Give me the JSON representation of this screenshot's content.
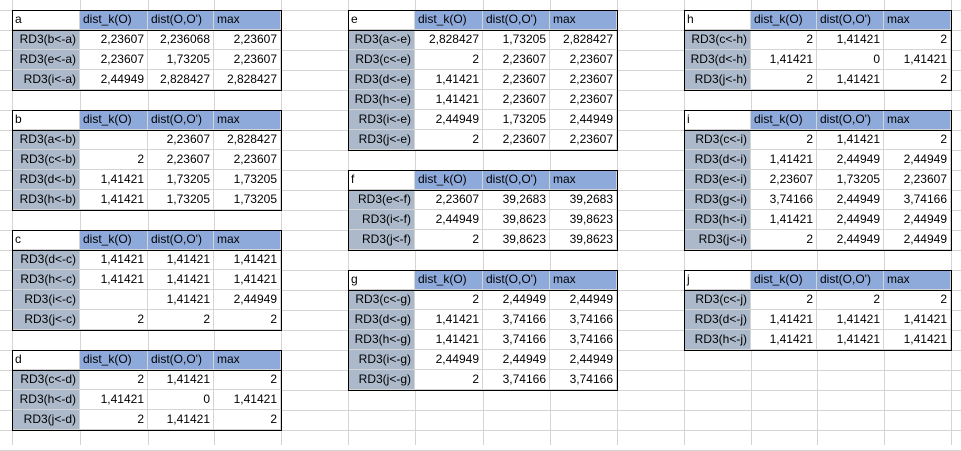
{
  "tables": [
    {
      "name": "a",
      "headers": [
        "dist_k(O)",
        "dist(O,O')",
        "max"
      ],
      "rows": [
        [
          "RD3(b<-a)",
          "2,23607",
          "2,236068",
          "2,23607"
        ],
        [
          "RD3(e<-a)",
          "2,23607",
          "1,73205",
          "2,23607"
        ],
        [
          "RD3(i<-a)",
          "2,44949",
          "2,828427",
          "2,828427"
        ]
      ]
    },
    {
      "name": "b",
      "headers": [
        "dist_k(O)",
        "dist(O,O')",
        "max"
      ],
      "rows": [
        [
          "RD3(a<-b)",
          "",
          "2,23607",
          "2,828427"
        ],
        [
          "RD3(c<-b)",
          "2",
          "2,23607",
          "2,23607"
        ],
        [
          "RD3(d<-b)",
          "1,41421",
          "1,73205",
          "1,73205"
        ],
        [
          "RD3(h<-b)",
          "1,41421",
          "1,73205",
          "1,73205"
        ]
      ]
    },
    {
      "name": "c",
      "headers": [
        "dist_k(O)",
        "dist(O,O')",
        "max"
      ],
      "rows": [
        [
          "RD3(d<-c)",
          "1,41421",
          "1,41421",
          "1,41421"
        ],
        [
          "RD3(h<-c)",
          "1,41421",
          "1,41421",
          "1,41421"
        ],
        [
          "RD3(i<-c)",
          "",
          "1,41421",
          "2,44949"
        ],
        [
          "RD3(j<-c)",
          "2",
          "2",
          "2"
        ]
      ]
    },
    {
      "name": "d",
      "headers": [
        "dist_k(O)",
        "dist(O,O')",
        "max"
      ],
      "rows": [
        [
          "RD3(c<-d)",
          "2",
          "1,41421",
          "2"
        ],
        [
          "RD3(h<-d)",
          "1,41421",
          "0",
          "1,41421"
        ],
        [
          "RD3(j<-d)",
          "2",
          "1,41421",
          "2"
        ]
      ]
    },
    {
      "name": "e",
      "headers": [
        "dist_k(O)",
        "dist(O,O')",
        "max"
      ],
      "rows": [
        [
          "RD3(a<-e)",
          "2,828427",
          "1,73205",
          "2,828427"
        ],
        [
          "RD3(c<-e)",
          "2",
          "2,23607",
          "2,23607"
        ],
        [
          "RD3(d<-e)",
          "1,41421",
          "2,23607",
          "2,23607"
        ],
        [
          "RD3(h<-e)",
          "1,41421",
          "2,23607",
          "2,23607"
        ],
        [
          "RD3(i<-e)",
          "2,44949",
          "1,73205",
          "2,44949"
        ],
        [
          "RD3(j<-e)",
          "2",
          "2,23607",
          "2,23607"
        ]
      ]
    },
    {
      "name": "f",
      "headers": [
        "dist_k(O)",
        "dist(O,O')",
        "max"
      ],
      "rows": [
        [
          "RD3(e<-f)",
          "2,23607",
          "39,2683",
          "39,2683"
        ],
        [
          "RD3(i<-f)",
          "2,44949",
          "39,8623",
          "39,8623"
        ],
        [
          "RD3(j<-f)",
          "2",
          "39,8623",
          "39,8623"
        ]
      ]
    },
    {
      "name": "g",
      "headers": [
        "dist_k(O)",
        "dist(O,O')",
        "max"
      ],
      "rows": [
        [
          "RD3(c<-g)",
          "2",
          "2,44949",
          "2,44949"
        ],
        [
          "RD3(d<-g)",
          "1,41421",
          "3,74166",
          "3,74166"
        ],
        [
          "RD3(h<-g)",
          "1,41421",
          "3,74166",
          "3,74166"
        ],
        [
          "RD3(i<-g)",
          "2,44949",
          "2,44949",
          "2,44949"
        ],
        [
          "RD3(j<-g)",
          "2",
          "3,74166",
          "3,74166"
        ]
      ]
    },
    {
      "name": "h",
      "headers": [
        "dist_k(O)",
        "dist(O,O')",
        "max"
      ],
      "rows": [
        [
          "RD3(c<-h)",
          "2",
          "1,41421",
          "2"
        ],
        [
          "RD3(d<-h)",
          "1,41421",
          "0",
          "1,41421"
        ],
        [
          "RD3(j<-h)",
          "2",
          "1,41421",
          "2"
        ]
      ]
    },
    {
      "name": "i",
      "headers": [
        "dist_k(O)",
        "dist(O,O')",
        "max"
      ],
      "rows": [
        [
          "RD3(c<-i)",
          "2",
          "1,41421",
          "2"
        ],
        [
          "RD3(d<-i)",
          "1,41421",
          "2,44949",
          "2,44949"
        ],
        [
          "RD3(e<-i)",
          "2,23607",
          "1,73205",
          "2,23607"
        ],
        [
          "RD3(g<-i)",
          "3,74166",
          "2,44949",
          "3,74166"
        ],
        [
          "RD3(h<-i)",
          "1,41421",
          "2,44949",
          "2,44949"
        ],
        [
          "RD3(j<-i)",
          "2",
          "2,44949",
          "2,44949"
        ]
      ]
    },
    {
      "name": "j",
      "headers": [
        "dist_k(O)",
        "dist(O,O')",
        "max"
      ],
      "rows": [
        [
          "RD3(c<-j)",
          "2",
          "2",
          "2"
        ],
        [
          "RD3(d<-j)",
          "1,41421",
          "1,41421",
          "1,41421"
        ],
        [
          "RD3(h<-j)",
          "1,41421",
          "1,41421",
          "1,41421"
        ]
      ]
    }
  ],
  "colors": {
    "header_fill": "#8eaadb",
    "label_fill": "#acb9ca",
    "gridline": "#d4d4d4",
    "border": "#000000"
  }
}
